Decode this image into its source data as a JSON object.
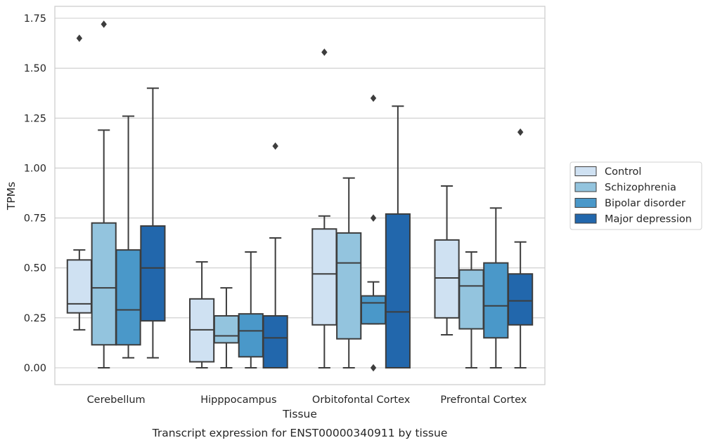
{
  "chart_data": {
    "type": "box",
    "title": "",
    "caption": "Transcript expression for ENST00000340911 by tissue",
    "xlabel": "Tissue",
    "ylabel": "TPMs",
    "ylim": [
      -0.08,
      1.81
    ],
    "yticks": [
      0.0,
      0.25,
      0.5,
      0.75,
      1.0,
      1.25,
      1.5,
      1.75
    ],
    "ytick_labels": [
      "0.00",
      "0.25",
      "0.50",
      "0.75",
      "1.00",
      "1.25",
      "1.50",
      "1.75"
    ],
    "grid": "horizontal",
    "legend_position": "right",
    "categories": [
      "Cerebellum",
      "Hipppocampus",
      "Orbitofontal Cortex",
      "Prefrontal Cortex"
    ],
    "series": [
      {
        "name": "Control",
        "color": "#cfe1f2",
        "boxes": [
          {
            "q1": 0.275,
            "median": 0.32,
            "q3": 0.54,
            "whisker_low": 0.19,
            "whisker_high": 0.59,
            "outliers": [
              1.65
            ]
          },
          {
            "q1": 0.03,
            "median": 0.19,
            "q3": 0.345,
            "whisker_low": 0.0,
            "whisker_high": 0.53,
            "outliers": []
          },
          {
            "q1": 0.215,
            "median": 0.47,
            "q3": 0.695,
            "whisker_low": 0.0,
            "whisker_high": 0.76,
            "outliers": [
              1.58
            ]
          },
          {
            "q1": 0.25,
            "median": 0.45,
            "q3": 0.64,
            "whisker_low": 0.165,
            "whisker_high": 0.91,
            "outliers": []
          }
        ]
      },
      {
        "name": "Schizophrenia",
        "color": "#93c4de",
        "boxes": [
          {
            "q1": 0.115,
            "median": 0.4,
            "q3": 0.725,
            "whisker_low": 0.0,
            "whisker_high": 1.19,
            "outliers": [
              1.72
            ]
          },
          {
            "q1": 0.125,
            "median": 0.16,
            "q3": 0.26,
            "whisker_low": 0.0,
            "whisker_high": 0.4,
            "outliers": []
          },
          {
            "q1": 0.145,
            "median": 0.525,
            "q3": 0.675,
            "whisker_low": 0.0,
            "whisker_high": 0.95,
            "outliers": []
          },
          {
            "q1": 0.195,
            "median": 0.41,
            "q3": 0.49,
            "whisker_low": 0.0,
            "whisker_high": 0.58,
            "outliers": []
          }
        ]
      },
      {
        "name": "Bipolar disorder",
        "color": "#4a98c9",
        "boxes": [
          {
            "q1": 0.115,
            "median": 0.29,
            "q3": 0.59,
            "whisker_low": 0.05,
            "whisker_high": 1.26,
            "outliers": []
          },
          {
            "q1": 0.055,
            "median": 0.185,
            "q3": 0.27,
            "whisker_low": 0.0,
            "whisker_high": 0.58,
            "outliers": []
          },
          {
            "q1": 0.22,
            "median": 0.325,
            "q3": 0.36,
            "whisker_low": 0.22,
            "whisker_high": 0.43,
            "outliers": [
              0.0,
              0.75,
              1.35
            ]
          },
          {
            "q1": 0.15,
            "median": 0.31,
            "q3": 0.525,
            "whisker_low": 0.0,
            "whisker_high": 0.8,
            "outliers": []
          }
        ]
      },
      {
        "name": "Major depression",
        "color": "#2267ac",
        "boxes": [
          {
            "q1": 0.235,
            "median": 0.5,
            "q3": 0.71,
            "whisker_low": 0.05,
            "whisker_high": 1.4,
            "outliers": []
          },
          {
            "q1": 0.0,
            "median": 0.15,
            "q3": 0.26,
            "whisker_low": 0.0,
            "whisker_high": 0.65,
            "outliers": [
              1.11
            ]
          },
          {
            "q1": 0.0,
            "median": 0.28,
            "q3": 0.77,
            "whisker_low": 0.0,
            "whisker_high": 1.31,
            "outliers": []
          },
          {
            "q1": 0.215,
            "median": 0.335,
            "q3": 0.47,
            "whisker_low": 0.0,
            "whisker_high": 0.63,
            "outliers": [
              1.18
            ]
          }
        ]
      }
    ]
  }
}
